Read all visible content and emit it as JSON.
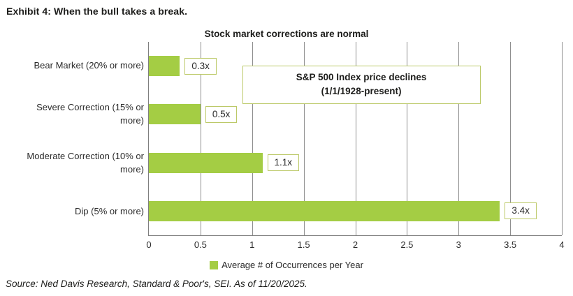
{
  "exhibit_title": "Exhibit 4: When the bull takes a break.",
  "chart": {
    "title": "Stock market corrections are normal",
    "annotation_line1": "S&P 500 Index price declines",
    "annotation_line2": "(1/1/1928-present)",
    "legend_label": "Average # of Occurrences per Year"
  },
  "chart_data": {
    "type": "bar",
    "orientation": "horizontal",
    "title": "Stock market corrections are normal",
    "categories": [
      "Bear Market (20% or more)",
      "Severe Correction (15% or more)",
      "Moderate Correction (10% or more)",
      "Dip (5% or more)"
    ],
    "series": [
      {
        "name": "Average # of Occurrences per Year",
        "values": [
          0.3,
          0.5,
          1.1,
          3.4
        ],
        "value_labels": [
          "0.3x",
          "0.5x",
          "1.1x",
          "3.4x"
        ]
      }
    ],
    "xlabel": "",
    "ylabel": "",
    "xlim": [
      0,
      4
    ],
    "x_ticks": [
      "0",
      "0.5",
      "1",
      "1.5",
      "2",
      "2.5",
      "3",
      "3.5",
      "4"
    ],
    "grid": true,
    "legend_position": "bottom",
    "annotation": "S&P 500 Index price declines (1/1/1928-present)"
  },
  "source": "Source: Ned Davis Research, Standard & Poor's, SEI. As of 11/20/2025.",
  "colors": {
    "bar": "#a4cd44",
    "box_border": "#bcc968",
    "gridline": "#8e8e8e",
    "axis": "#7f7f7f",
    "text": "#1d1d1b"
  }
}
